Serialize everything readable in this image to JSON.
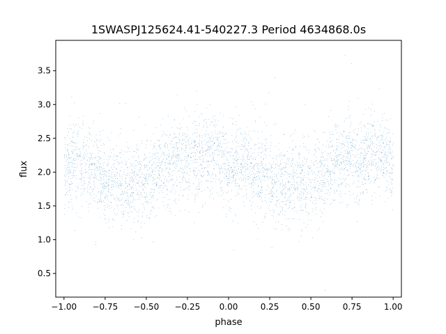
{
  "chart_data": {
    "type": "scatter",
    "title": "1SWASPJ125624.41-540227.3 Period 4634868.0s",
    "xlabel": "phase",
    "ylabel": "flux",
    "xlim": [
      -1.05,
      1.05
    ],
    "ylim": [
      0.15,
      3.95
    ],
    "x_ticks": [
      -1.0,
      -0.75,
      -0.5,
      -0.25,
      0.0,
      0.25,
      0.5,
      0.75,
      1.0
    ],
    "x_tick_labels": [
      "−1.00",
      "−0.75",
      "−0.50",
      "−0.25",
      "0.00",
      "0.25",
      "0.50",
      "0.75",
      "1.00"
    ],
    "y_ticks": [
      0.5,
      1.0,
      1.5,
      2.0,
      2.5,
      3.0,
      3.5
    ],
    "y_tick_labels": [
      "0.5",
      "1.0",
      "1.5",
      "2.0",
      "2.5",
      "3.0",
      "3.5"
    ],
    "grid": false,
    "marker_color": "#1f77b4",
    "series": [
      {
        "points_summary": "dense phase-folded light curve, repeated over two cycles",
        "profile": [
          {
            "phase": 0.0,
            "median": 2.05
          },
          {
            "phase": 0.05,
            "median": 2.15
          },
          {
            "phase": 0.1,
            "median": 2.1
          },
          {
            "phase": 0.15,
            "median": 2.05
          },
          {
            "phase": 0.2,
            "median": 2.0
          },
          {
            "phase": 0.25,
            "median": 1.9
          },
          {
            "phase": 0.3,
            "median": 1.85
          },
          {
            "phase": 0.35,
            "median": 1.85
          },
          {
            "phase": 0.4,
            "median": 1.85
          },
          {
            "phase": 0.45,
            "median": 1.85
          },
          {
            "phase": 0.5,
            "median": 1.9
          },
          {
            "phase": 0.55,
            "median": 1.95
          },
          {
            "phase": 0.6,
            "median": 2.05
          },
          {
            "phase": 0.65,
            "median": 2.15
          },
          {
            "phase": 0.7,
            "median": 2.2
          },
          {
            "phase": 0.75,
            "median": 2.2
          },
          {
            "phase": 0.8,
            "median": 2.2
          },
          {
            "phase": 0.85,
            "median": 2.2
          },
          {
            "phase": 0.9,
            "median": 2.25
          },
          {
            "phase": 0.95,
            "median": 2.25
          },
          {
            "phase": 1.0,
            "median": 2.05
          }
        ],
        "scatter_sigma": 0.3
      }
    ]
  }
}
